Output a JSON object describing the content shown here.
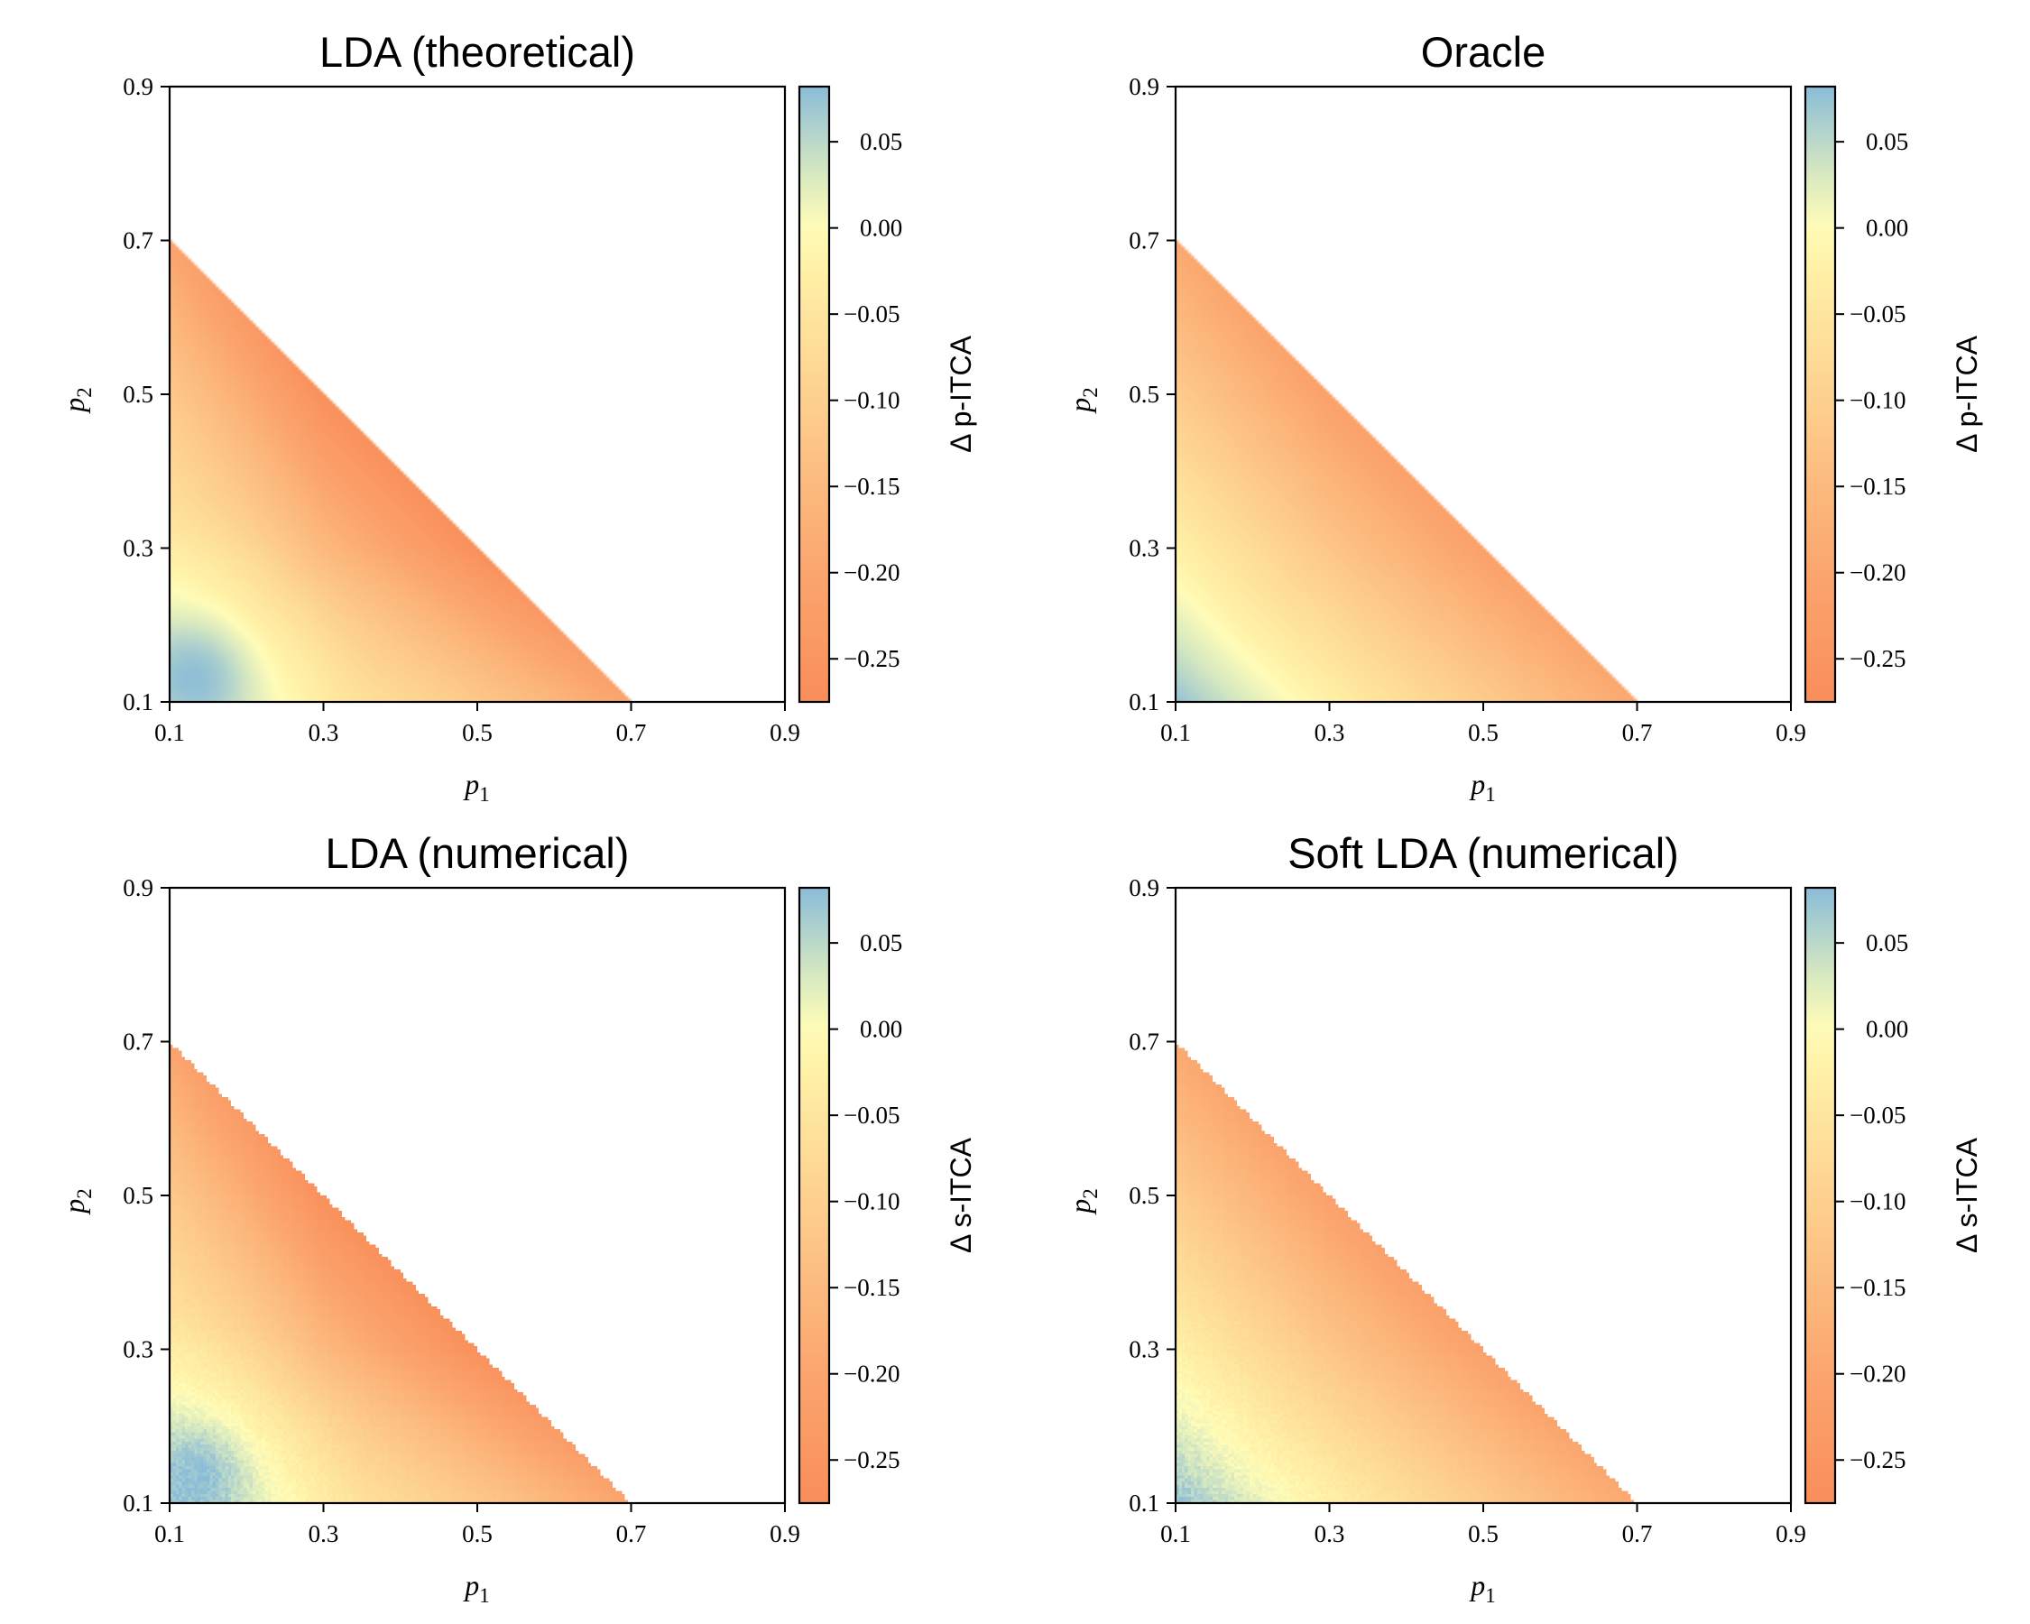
{
  "chart_data": [
    {
      "type": "heatmap",
      "title": "LDA (theoretical)",
      "xlabel": "p1",
      "ylabel": "p2",
      "xlim": [
        0.1,
        0.9
      ],
      "ylim": [
        0.1,
        0.9
      ],
      "xticks": [
        "0.1",
        "0.3",
        "0.5",
        "0.7",
        "0.9"
      ],
      "yticks": [
        "0.1",
        "0.3",
        "0.5",
        "0.7",
        "0.9"
      ],
      "domain": "p1 + p2 <= 0.8",
      "pattern": "theoretical",
      "colorbar": {
        "label": "Δ p-ITCA",
        "range": [
          -0.275,
          0.082
        ],
        "ticks": [
          "0.05",
          "0.00",
          "−0.05",
          "−0.10",
          "−0.15",
          "−0.20",
          "−0.25"
        ],
        "tick_values": [
          0.05,
          0.0,
          -0.05,
          -0.1,
          -0.15,
          -0.2,
          -0.25
        ]
      },
      "sample_values": [
        {
          "p1": 0.12,
          "p2": 0.12,
          "value": 0.07
        },
        {
          "p1": 0.3,
          "p2": 0.1,
          "value": -0.01
        },
        {
          "p1": 0.1,
          "p2": 0.3,
          "value": -0.01
        },
        {
          "p1": 0.1,
          "p2": 0.68,
          "value": -0.1
        },
        {
          "p1": 0.68,
          "p2": 0.1,
          "value": -0.1
        },
        {
          "p1": 0.4,
          "p2": 0.4,
          "value": -0.21
        }
      ]
    },
    {
      "type": "heatmap",
      "title": "Oracle",
      "xlabel": "p1",
      "ylabel": "p2",
      "xlim": [
        0.1,
        0.9
      ],
      "ylim": [
        0.1,
        0.9
      ],
      "xticks": [
        "0.1",
        "0.3",
        "0.5",
        "0.7",
        "0.9"
      ],
      "yticks": [
        "0.1",
        "0.3",
        "0.5",
        "0.7",
        "0.9"
      ],
      "domain": "p1 + p2 <= 0.8",
      "pattern": "oracle",
      "colorbar": {
        "label": "Δ p-ITCA",
        "range": [
          -0.275,
          0.082
        ],
        "ticks": [
          "0.05",
          "0.00",
          "−0.05",
          "−0.10",
          "−0.15",
          "−0.20",
          "−0.25"
        ],
        "tick_values": [
          0.05,
          0.0,
          -0.05,
          -0.1,
          -0.15,
          -0.2,
          -0.25
        ]
      },
      "sample_values": [
        {
          "p1": 0.1,
          "p2": 0.1,
          "value": 0.075
        },
        {
          "p1": 0.35,
          "p2": 0.1,
          "value": -0.01
        },
        {
          "p1": 0.1,
          "p2": 0.35,
          "value": -0.01
        },
        {
          "p1": 0.1,
          "p2": 0.68,
          "value": -0.1
        },
        {
          "p1": 0.68,
          "p2": 0.1,
          "value": -0.1
        },
        {
          "p1": 0.4,
          "p2": 0.4,
          "value": -0.2
        }
      ]
    },
    {
      "type": "heatmap",
      "title": "LDA (numerical)",
      "xlabel": "p1",
      "ylabel": "p2",
      "xlim": [
        0.1,
        0.9
      ],
      "ylim": [
        0.1,
        0.9
      ],
      "xticks": [
        "0.1",
        "0.3",
        "0.5",
        "0.7",
        "0.9"
      ],
      "yticks": [
        "0.1",
        "0.3",
        "0.5",
        "0.7",
        "0.9"
      ],
      "domain": "p1 + p2 <= 0.8",
      "pattern": "theoretical",
      "colorbar": {
        "label": "Δ s-ITCA",
        "range": [
          -0.275,
          0.082
        ],
        "ticks": [
          "0.05",
          "0.00",
          "−0.05",
          "−0.10",
          "−0.15",
          "−0.20",
          "−0.25"
        ],
        "tick_values": [
          0.05,
          0.0,
          -0.05,
          -0.1,
          -0.15,
          -0.2,
          -0.25
        ]
      },
      "sample_values": [
        {
          "p1": 0.12,
          "p2": 0.12,
          "value": 0.065
        },
        {
          "p1": 0.3,
          "p2": 0.1,
          "value": -0.01
        },
        {
          "p1": 0.1,
          "p2": 0.3,
          "value": -0.01
        },
        {
          "p1": 0.1,
          "p2": 0.68,
          "value": -0.1
        },
        {
          "p1": 0.68,
          "p2": 0.1,
          "value": -0.1
        },
        {
          "p1": 0.4,
          "p2": 0.4,
          "value": -0.21
        }
      ]
    },
    {
      "type": "heatmap",
      "title": "Soft LDA (numerical)",
      "xlabel": "p1",
      "ylabel": "p2",
      "xlim": [
        0.1,
        0.9
      ],
      "ylim": [
        0.1,
        0.9
      ],
      "xticks": [
        "0.1",
        "0.3",
        "0.5",
        "0.7",
        "0.9"
      ],
      "yticks": [
        "0.1",
        "0.3",
        "0.5",
        "0.7",
        "0.9"
      ],
      "domain": "p1 + p2 <= 0.8",
      "pattern": "oracle",
      "colorbar": {
        "label": "Δ s-ITCA",
        "range": [
          -0.275,
          0.082
        ],
        "ticks": [
          "0.05",
          "0.00",
          "−0.05",
          "−0.10",
          "−0.15",
          "−0.20",
          "−0.25"
        ],
        "tick_values": [
          0.05,
          0.0,
          -0.05,
          -0.1,
          -0.15,
          -0.2,
          -0.25
        ]
      },
      "sample_values": [
        {
          "p1": 0.1,
          "p2": 0.1,
          "value": 0.07
        },
        {
          "p1": 0.35,
          "p2": 0.1,
          "value": -0.01
        },
        {
          "p1": 0.1,
          "p2": 0.35,
          "value": -0.01
        },
        {
          "p1": 0.1,
          "p2": 0.68,
          "value": -0.1
        },
        {
          "p1": 0.68,
          "p2": 0.1,
          "value": -0.1
        },
        {
          "p1": 0.4,
          "p2": 0.4,
          "value": -0.2
        }
      ]
    }
  ],
  "colormap": {
    "stops": [
      {
        "value": -0.275,
        "color": "#f98e5a"
      },
      {
        "value": -0.2,
        "color": "#fba56e"
      },
      {
        "value": -0.1,
        "color": "#fdd08e"
      },
      {
        "value": -0.02,
        "color": "#fff2a8"
      },
      {
        "value": 0.0,
        "color": "#fffcb8"
      },
      {
        "value": 0.03,
        "color": "#d9eac0"
      },
      {
        "value": 0.082,
        "color": "#8bbcd8"
      }
    ]
  }
}
